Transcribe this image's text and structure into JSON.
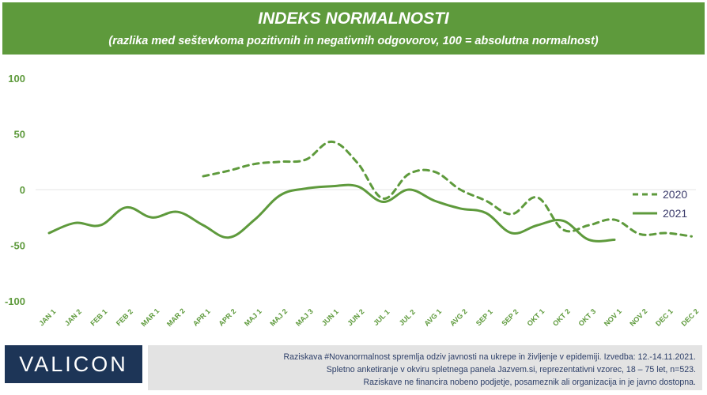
{
  "header": {
    "title": "INDEKS NORMALNOSTI",
    "subtitle": "(razlika med seštevkoma pozitivnih in negativnih odgovorov, 100 = absolutna normalnost)"
  },
  "chart_data": {
    "type": "line",
    "title": "INDEKS NORMALNOSTI",
    "subtitle": "(razlika med seštevkoma pozitivnih in negativnih odgovorov, 100 = absolutna normalnost)",
    "categories": [
      "JAN 1",
      "JAN 2",
      "FEB 1",
      "FEB 2",
      "MAR 1",
      "MAR 2",
      "APR 1",
      "APR 2",
      "MAJ 1",
      "MAJ 2",
      "MAJ 3",
      "JUN 1",
      "JUN 2",
      "JUL 1",
      "JUL 2",
      "AVG 1",
      "AVG 2",
      "SEP 1",
      "SEP 2",
      "OKT 1",
      "OKT 2",
      "OKT 3",
      "NOV 1",
      "NOV 2",
      "DEC 1",
      "DEC 2"
    ],
    "ylim": [
      -100,
      100
    ],
    "yticks": [
      100,
      50,
      0,
      -50,
      -100
    ],
    "grid": false,
    "legend_position": "right",
    "series": [
      {
        "name": "2020",
        "style": "dashed",
        "color": "#5e9a3c",
        "values": [
          null,
          null,
          null,
          null,
          null,
          null,
          12,
          17,
          23,
          25,
          27,
          43,
          24,
          -8,
          14,
          16,
          0,
          -10,
          -22,
          -7,
          -36,
          -32,
          -27,
          -40,
          -39,
          -42
        ]
      },
      {
        "name": "2021",
        "style": "solid",
        "color": "#5e9a3c",
        "values": [
          -39,
          -30,
          -32,
          -16,
          -25,
          -20,
          -32,
          -43,
          -27,
          -5,
          1,
          3,
          3,
          -11,
          0,
          -10,
          -17,
          -21,
          -39,
          -32,
          -28,
          -45,
          -45,
          null,
          null,
          null
        ]
      }
    ]
  },
  "footer": {
    "logo": "VALICON",
    "note_lines": [
      "Raziskava #Novanormalnost spremlja odziv javnosti na ukrepe in življenje v epidemiji. Izvedba: 12.-14.11.2021.",
      "Spletno anketiranje v okviru spletnega panela Jazvem.si, reprezentativni vzorec, 18 – 75 let, n=523.",
      "Raziskave ne financira nobeno podjetje, posameznik ali organizacija in je javno dostopna."
    ]
  }
}
